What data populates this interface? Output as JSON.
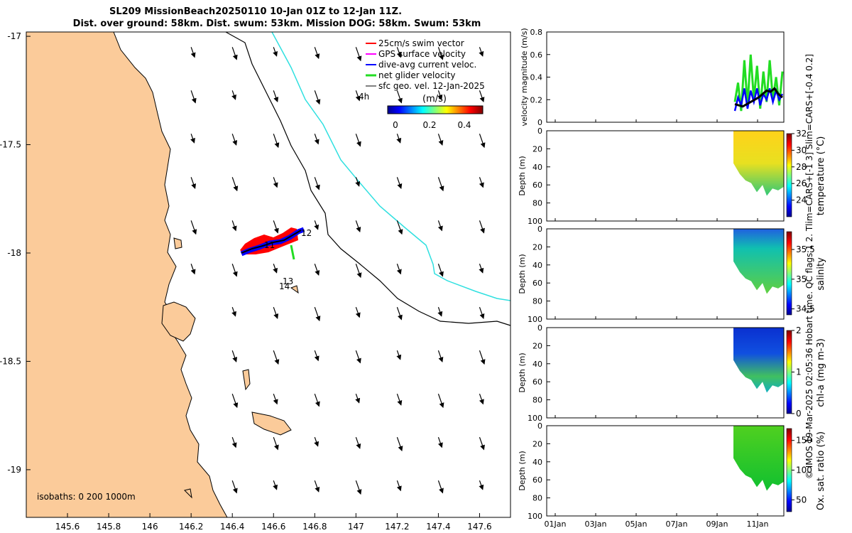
{
  "header": {
    "title_line1": "SL209 MissionBeach20250110 10-Jan 01Z to 12-Jan 11Z.",
    "title_line2": "Dist. over ground: 58km. Dist. swum: 53km. Mission DOG: 58km. Swum: 53km"
  },
  "side_note": "© IMOS 19-Mar-2025 02:05:36 Hobart time. QC flags 1  2. Tlim=CARS+[-1 3] Slim=CARS+[-0.4 0.2]",
  "colors": {
    "land": "#fbcb9a",
    "track_red": "#ff0000",
    "track_blue": "#0000ff",
    "cyan_isobath": "#30e0e0",
    "green": "#22dd22"
  },
  "chart_data": [
    {
      "type": "scatter",
      "name": "map",
      "xlim": [
        145.4,
        147.75
      ],
      "ylim": [
        -19.22,
        -16.98
      ],
      "x_ticks": [
        "145.6",
        "145.8",
        "146",
        "146.2",
        "146.4",
        "146.6",
        "146.8",
        "147",
        "147.2",
        "147.4",
        "147.6"
      ],
      "y_ticks": [
        "-17",
        "-17.5",
        "-18",
        "-18.5",
        "-19"
      ],
      "legend": [
        "25cm/s swim vector",
        "GPS surface velocity",
        "dive-avg current veloc.",
        "net glider velocity",
        "sfc geo. vel. 12-Jan-2025"
      ],
      "legend_note": "4h",
      "colorbar": {
        "label": "(m/s)",
        "ticks": [
          "0",
          "0.2",
          "0.4"
        ]
      },
      "isobath_note": "isobaths: 0   200  1000m",
      "day_labels": [
        "11",
        "12",
        "13",
        "14"
      ],
      "track": [
        [
          146.44,
          -18.0
        ],
        [
          146.5,
          -17.99
        ],
        [
          146.55,
          -17.97
        ],
        [
          146.6,
          -17.98
        ],
        [
          146.65,
          -17.97
        ],
        [
          146.7,
          -17.94
        ],
        [
          146.74,
          -17.92
        ]
      ]
    },
    {
      "type": "line",
      "name": "velocity",
      "ylabel": "velocity magnitude (m/s)",
      "ylim": [
        0,
        0.8
      ],
      "y_ticks": [
        "0",
        "0.2",
        "0.4",
        "0.6",
        "0.8"
      ],
      "series": [
        {
          "values": [
            0.18,
            0.35,
            0.1,
            0.55,
            0.15,
            0.6,
            0.2,
            0.5,
            0.12,
            0.45,
            0.18,
            0.55,
            0.2,
            0.4,
            0.15,
            0.45
          ]
        },
        {
          "values": [
            0.1,
            0.22,
            0.15,
            0.3,
            0.12,
            0.28,
            0.18,
            0.3,
            0.15,
            0.25,
            0.2,
            0.3,
            0.18,
            0.28,
            0.2,
            0.25
          ]
        },
        {
          "values": [
            0.16,
            0.15,
            0.14,
            0.16,
            0.18,
            0.2,
            0.22,
            0.25,
            0.28,
            0.27,
            0.3,
            0.25,
            0.22
          ]
        }
      ]
    },
    {
      "type": "heatmap",
      "name": "temperature",
      "ylabel": "Depth (m)",
      "colorbar_label": "temperature (°C)",
      "clim": [
        22,
        32
      ],
      "cb_ticks": [
        "32",
        "30",
        "28",
        "26",
        "24"
      ],
      "y_ticks": [
        "0",
        "20",
        "40",
        "60",
        "80",
        "100"
      ]
    },
    {
      "type": "heatmap",
      "name": "salinity",
      "ylabel": "Depth (m)",
      "colorbar_label": "salinity",
      "clim": [
        34.4,
        35.8
      ],
      "cb_ticks": [
        "35.5",
        "35",
        "34.5"
      ],
      "y_ticks": [
        "0",
        "20",
        "40",
        "60",
        "80",
        "100"
      ]
    },
    {
      "type": "heatmap",
      "name": "chla",
      "ylabel": "Depth (m)",
      "colorbar_label": "chl-a (mg m-3)",
      "clim": [
        0,
        2
      ],
      "cb_ticks": [
        "2",
        "1",
        "0"
      ],
      "y_ticks": [
        "0",
        "20",
        "40",
        "60",
        "80",
        "100"
      ]
    },
    {
      "type": "heatmap",
      "name": "oxygen",
      "ylabel": "Depth (m)",
      "colorbar_label": "Ox. sat. ratio (%)",
      "clim": [
        30,
        170
      ],
      "cb_ticks": [
        "150",
        "100",
        "50"
      ],
      "y_ticks": [
        "0",
        "20",
        "40",
        "60",
        "80",
        "100"
      ],
      "x_ticks": [
        "01Jan",
        "03Jan",
        "05Jan",
        "07Jan",
        "09Jan",
        "11Jan"
      ]
    }
  ]
}
